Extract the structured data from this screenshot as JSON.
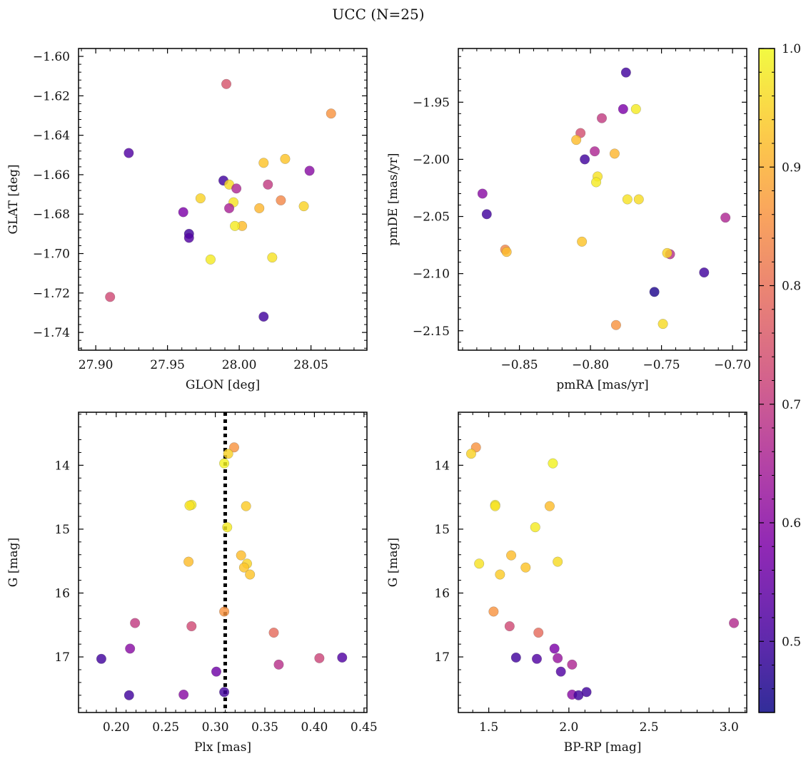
{
  "title": "UCC (N=25)",
  "colorbar": {
    "colormap": "plasma",
    "range": [
      0.44,
      1.0
    ],
    "ticks": [
      0.5,
      0.6,
      0.7,
      0.8,
      0.9,
      1.0
    ],
    "tick_labels": [
      "0.5",
      "0.6",
      "0.7",
      "0.8",
      "0.9",
      "1.0"
    ]
  },
  "chart_data": [
    {
      "type": "scatter",
      "xlabel": "GLON [deg]",
      "ylabel": "GLAT [deg]",
      "xlim": [
        27.888,
        28.089
      ],
      "ylim": [
        -1.749,
        -1.596
      ],
      "xticks": [
        27.9,
        27.95,
        28.0,
        28.05
      ],
      "xtick_labels": [
        "27.90",
        "27.95",
        "28.00",
        "28.05"
      ],
      "yticks": [
        -1.74,
        -1.72,
        -1.7,
        -1.68,
        -1.66,
        -1.64,
        -1.62,
        -1.6
      ],
      "ytick_labels": [
        "−1.74",
        "−1.72",
        "−1.70",
        "−1.68",
        "−1.66",
        "−1.64",
        "−1.62",
        "−1.60"
      ],
      "inverted_y": false,
      "points": [
        {
          "x": 27.991,
          "y": -1.614,
          "c": 0.75
        },
        {
          "x": 28.064,
          "y": -1.629,
          "c": 0.86
        },
        {
          "x": 27.923,
          "y": -1.649,
          "c": 0.52
        },
        {
          "x": 28.032,
          "y": -1.652,
          "c": 0.93
        },
        {
          "x": 28.017,
          "y": -1.654,
          "c": 0.93
        },
        {
          "x": 28.049,
          "y": -1.658,
          "c": 0.6
        },
        {
          "x": 27.989,
          "y": -1.663,
          "c": 0.5
        },
        {
          "x": 27.993,
          "y": -1.665,
          "c": 0.96
        },
        {
          "x": 28.02,
          "y": -1.665,
          "c": 0.7
        },
        {
          "x": 27.998,
          "y": -1.667,
          "c": 0.66
        },
        {
          "x": 27.973,
          "y": -1.672,
          "c": 0.95
        },
        {
          "x": 28.029,
          "y": -1.673,
          "c": 0.84
        },
        {
          "x": 27.996,
          "y": -1.674,
          "c": 0.97
        },
        {
          "x": 27.993,
          "y": -1.677,
          "c": 0.65
        },
        {
          "x": 28.045,
          "y": -1.676,
          "c": 0.95
        },
        {
          "x": 28.014,
          "y": -1.677,
          "c": 0.91
        },
        {
          "x": 27.961,
          "y": -1.679,
          "c": 0.58
        },
        {
          "x": 28.002,
          "y": -1.686,
          "c": 0.92
        },
        {
          "x": 27.997,
          "y": -1.686,
          "c": 0.98
        },
        {
          "x": 27.965,
          "y": -1.69,
          "c": 0.5
        },
        {
          "x": 27.965,
          "y": -1.692,
          "c": 0.52
        },
        {
          "x": 28.023,
          "y": -1.702,
          "c": 0.97
        },
        {
          "x": 27.98,
          "y": -1.703,
          "c": 0.98
        },
        {
          "x": 27.91,
          "y": -1.722,
          "c": 0.73
        },
        {
          "x": 28.017,
          "y": -1.732,
          "c": 0.5
        }
      ]
    },
    {
      "type": "scatter",
      "xlabel": "pmRA [mas/yr]",
      "ylabel": "pmDE [mas/yr]",
      "xlim": [
        -0.893,
        -0.69
      ],
      "ylim": [
        -2.167,
        -1.903
      ],
      "xticks": [
        -0.85,
        -0.8,
        -0.75,
        -0.7
      ],
      "xtick_labels": [
        "−0.85",
        "−0.80",
        "−0.75",
        "−0.70"
      ],
      "yticks": [
        -2.15,
        -2.1,
        -2.05,
        -2.0,
        -1.95
      ],
      "ytick_labels": [
        "−2.15",
        "−2.10",
        "−2.05",
        "−2.00",
        "−1.95"
      ],
      "inverted_y": false,
      "points": [
        {
          "x": -0.775,
          "y": -1.924,
          "c": 0.5
        },
        {
          "x": -0.777,
          "y": -1.956,
          "c": 0.58
        },
        {
          "x": -0.768,
          "y": -1.956,
          "c": 0.98
        },
        {
          "x": -0.792,
          "y": -1.964,
          "c": 0.7
        },
        {
          "x": -0.807,
          "y": -1.977,
          "c": 0.74
        },
        {
          "x": -0.81,
          "y": -1.983,
          "c": 0.92
        },
        {
          "x": -0.797,
          "y": -1.993,
          "c": 0.66
        },
        {
          "x": -0.783,
          "y": -1.995,
          "c": 0.91
        },
        {
          "x": -0.804,
          "y": -2.0,
          "c": 0.5
        },
        {
          "x": -0.795,
          "y": -2.015,
          "c": 0.97
        },
        {
          "x": -0.796,
          "y": -2.02,
          "c": 0.98
        },
        {
          "x": -0.876,
          "y": -2.03,
          "c": 0.6
        },
        {
          "x": -0.774,
          "y": -2.035,
          "c": 0.97
        },
        {
          "x": -0.766,
          "y": -2.035,
          "c": 0.96
        },
        {
          "x": -0.873,
          "y": -2.048,
          "c": 0.5
        },
        {
          "x": -0.705,
          "y": -2.051,
          "c": 0.66
        },
        {
          "x": -0.806,
          "y": -2.072,
          "c": 0.93
        },
        {
          "x": -0.86,
          "y": -2.079,
          "c": 0.84
        },
        {
          "x": -0.859,
          "y": -2.081,
          "c": 0.92
        },
        {
          "x": -0.744,
          "y": -2.083,
          "c": 0.68
        },
        {
          "x": -0.746,
          "y": -2.082,
          "c": 0.95
        },
        {
          "x": -0.72,
          "y": -2.099,
          "c": 0.5
        },
        {
          "x": -0.755,
          "y": -2.116,
          "c": 0.46
        },
        {
          "x": -0.782,
          "y": -2.145,
          "c": 0.86
        },
        {
          "x": -0.749,
          "y": -2.144,
          "c": 0.96
        }
      ]
    },
    {
      "type": "scatter",
      "xlabel": "Plx [mas]",
      "ylabel": "G [mag]",
      "xlim": [
        0.162,
        0.453
      ],
      "ylim": [
        17.87,
        13.17
      ],
      "xticks": [
        0.2,
        0.25,
        0.3,
        0.35,
        0.4,
        0.45
      ],
      "xtick_labels": [
        "0.20",
        "0.25",
        "0.30",
        "0.35",
        "0.40",
        "0.45"
      ],
      "yticks": [
        14,
        15,
        16,
        17
      ],
      "ytick_labels": [
        "14",
        "15",
        "16",
        "17"
      ],
      "inverted_y": true,
      "vline": 0.31,
      "points": [
        {
          "x": 0.319,
          "y": 13.72,
          "c": 0.86
        },
        {
          "x": 0.313,
          "y": 13.82,
          "c": 0.95
        },
        {
          "x": 0.309,
          "y": 13.97,
          "c": 0.99
        },
        {
          "x": 0.276,
          "y": 14.62,
          "c": 0.98
        },
        {
          "x": 0.274,
          "y": 14.63,
          "c": 0.97
        },
        {
          "x": 0.331,
          "y": 14.64,
          "c": 0.94
        },
        {
          "x": 0.312,
          "y": 14.97,
          "c": 0.98
        },
        {
          "x": 0.326,
          "y": 15.41,
          "c": 0.92
        },
        {
          "x": 0.273,
          "y": 15.51,
          "c": 0.92
        },
        {
          "x": 0.332,
          "y": 15.54,
          "c": 0.95
        },
        {
          "x": 0.329,
          "y": 15.6,
          "c": 0.93
        },
        {
          "x": 0.335,
          "y": 15.71,
          "c": 0.93
        },
        {
          "x": 0.309,
          "y": 16.29,
          "c": 0.86
        },
        {
          "x": 0.219,
          "y": 16.47,
          "c": 0.7
        },
        {
          "x": 0.276,
          "y": 16.52,
          "c": 0.73
        },
        {
          "x": 0.359,
          "y": 16.62,
          "c": 0.79
        },
        {
          "x": 0.214,
          "y": 16.87,
          "c": 0.6
        },
        {
          "x": 0.428,
          "y": 17.01,
          "c": 0.52
        },
        {
          "x": 0.185,
          "y": 17.03,
          "c": 0.5
        },
        {
          "x": 0.405,
          "y": 17.02,
          "c": 0.72
        },
        {
          "x": 0.364,
          "y": 17.12,
          "c": 0.68
        },
        {
          "x": 0.301,
          "y": 17.23,
          "c": 0.56
        },
        {
          "x": 0.309,
          "y": 17.55,
          "c": 0.5
        },
        {
          "x": 0.268,
          "y": 17.59,
          "c": 0.6
        },
        {
          "x": 0.213,
          "y": 17.6,
          "c": 0.5
        }
      ]
    },
    {
      "type": "scatter",
      "xlabel": "BP-RP [mag]",
      "ylabel": "G [mag]",
      "xlim": [
        1.31,
        3.11
      ],
      "ylim": [
        17.87,
        13.17
      ],
      "xticks": [
        1.5,
        2.0,
        2.5,
        3.0
      ],
      "xtick_labels": [
        "1.5",
        "2.0",
        "2.5",
        "3.0"
      ],
      "yticks": [
        14,
        15,
        16,
        17
      ],
      "ytick_labels": [
        "14",
        "15",
        "16",
        "17"
      ],
      "inverted_y": true,
      "points": [
        {
          "x": 1.42,
          "y": 13.72,
          "c": 0.86
        },
        {
          "x": 1.39,
          "y": 13.82,
          "c": 0.95
        },
        {
          "x": 1.9,
          "y": 13.97,
          "c": 0.99
        },
        {
          "x": 1.54,
          "y": 14.62,
          "c": 0.98
        },
        {
          "x": 1.54,
          "y": 14.64,
          "c": 0.97
        },
        {
          "x": 1.88,
          "y": 14.64,
          "c": 0.92
        },
        {
          "x": 1.79,
          "y": 14.97,
          "c": 0.98
        },
        {
          "x": 1.64,
          "y": 15.41,
          "c": 0.92
        },
        {
          "x": 1.44,
          "y": 15.54,
          "c": 0.97
        },
        {
          "x": 1.93,
          "y": 15.51,
          "c": 0.96
        },
        {
          "x": 1.73,
          "y": 15.6,
          "c": 0.93
        },
        {
          "x": 1.57,
          "y": 15.71,
          "c": 0.94
        },
        {
          "x": 1.53,
          "y": 16.29,
          "c": 0.86
        },
        {
          "x": 1.63,
          "y": 16.52,
          "c": 0.73
        },
        {
          "x": 3.03,
          "y": 16.47,
          "c": 0.67
        },
        {
          "x": 1.81,
          "y": 16.62,
          "c": 0.79
        },
        {
          "x": 1.91,
          "y": 16.87,
          "c": 0.58
        },
        {
          "x": 1.67,
          "y": 17.01,
          "c": 0.5
        },
        {
          "x": 1.8,
          "y": 17.03,
          "c": 0.52
        },
        {
          "x": 1.93,
          "y": 17.02,
          "c": 0.62
        },
        {
          "x": 2.02,
          "y": 17.12,
          "c": 0.66
        },
        {
          "x": 1.95,
          "y": 17.23,
          "c": 0.52
        },
        {
          "x": 2.11,
          "y": 17.55,
          "c": 0.5
        },
        {
          "x": 2.02,
          "y": 17.59,
          "c": 0.6
        },
        {
          "x": 2.06,
          "y": 17.6,
          "c": 0.5
        }
      ]
    }
  ]
}
